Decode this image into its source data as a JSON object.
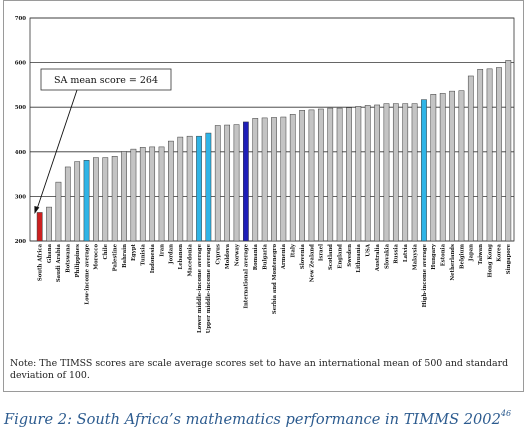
{
  "chart_data": {
    "type": "bar",
    "ylim": [
      200,
      700
    ],
    "yticks": [
      200,
      300,
      400,
      500,
      600,
      700
    ],
    "grid": true,
    "annotation": "SA mean score = 264",
    "categories": [
      "South Africa",
      "Ghana",
      "Saudi Arabia",
      "Botswana",
      "Philippines",
      "Low-income average",
      "Morocco",
      "Chile",
      "Palestine",
      "Bahrain",
      "Egypt",
      "Tunisia",
      "Indonesia",
      "Iran",
      "Jordan",
      "Lebanon",
      "Macedonia",
      "Lower middle-income average",
      "Upper middle-income average",
      "Cyprus",
      "Moldova",
      "Norway",
      "International average",
      "Romania",
      "Bulgaria",
      "Serbia and Montenegro",
      "Armenia",
      "Italy",
      "Slovenia",
      "New Zealand",
      "Israel",
      "Scotland",
      "England",
      "Sweden",
      "Lithuania",
      "USA",
      "Australia",
      "Slovakia",
      "Russia",
      "Latvia",
      "Malaysia",
      "High-income average",
      "Hungary",
      "Estonia",
      "Netherlands",
      "Belgium",
      "Japan",
      "Taiwan",
      "Hong Kong",
      "Korea",
      "Singapore"
    ],
    "values": [
      264,
      276,
      332,
      366,
      378,
      381,
      387,
      387,
      390,
      401,
      406,
      410,
      411,
      411,
      424,
      433,
      435,
      435,
      442,
      459,
      460,
      461,
      467,
      475,
      476,
      477,
      478,
      484,
      493,
      494,
      496,
      498,
      498,
      499,
      502,
      504,
      505,
      508,
      508,
      508,
      508,
      517,
      529,
      531,
      536,
      537,
      570,
      585,
      586,
      589,
      605
    ],
    "bar_kind": [
      "sa",
      "country",
      "country",
      "country",
      "country",
      "income",
      "country",
      "country",
      "country",
      "country",
      "country",
      "country",
      "country",
      "country",
      "country",
      "country",
      "country",
      "income",
      "income",
      "country",
      "country",
      "country",
      "international",
      "country",
      "country",
      "country",
      "country",
      "country",
      "country",
      "country",
      "country",
      "country",
      "country",
      "country",
      "country",
      "country",
      "country",
      "country",
      "country",
      "country",
      "country",
      "income",
      "country",
      "country",
      "country",
      "country",
      "country",
      "country",
      "country",
      "country",
      "country"
    ]
  },
  "colors": {
    "sa": "#cc1f1f",
    "country": "#c4c4c4",
    "income": "#2fb4e6",
    "international": "#1f1fb8",
    "grid": "#333333",
    "caption": "#2c5b8f"
  },
  "note": "Note: The TIMSS scores are scale average scores set to have an international mean of 500 and standard deviation of 100.",
  "caption": {
    "text": "Figure 2: South Africa’s mathematics performance in TIMMS 2002",
    "footnote": "46"
  }
}
